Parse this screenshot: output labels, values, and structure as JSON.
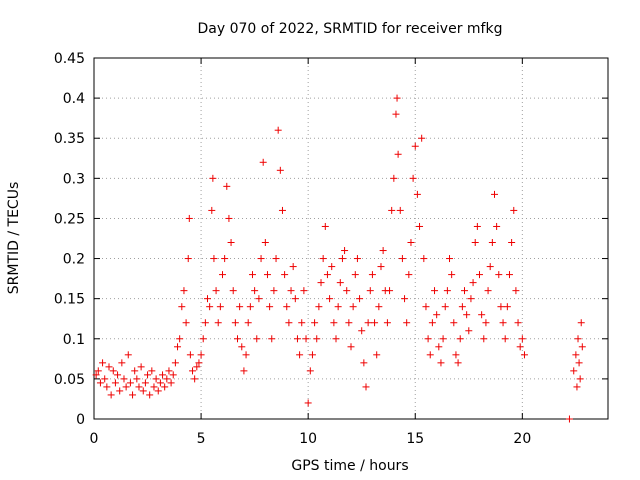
{
  "chart_data": {
    "type": "scatter",
    "title": "Day 070 of 2022, SRMTID for receiver mfkg",
    "xlabel": "GPS time / hours",
    "ylabel": "SRMTID / TECUs",
    "xlim": [
      0,
      24
    ],
    "ylim": [
      0,
      0.45
    ],
    "x_ticks": [
      0,
      5,
      10,
      15,
      20
    ],
    "x_tick_labels": [
      "0",
      "5",
      "10",
      "15",
      "20"
    ],
    "y_ticks": [
      0,
      0.05,
      0.1,
      0.15,
      0.2,
      0.25,
      0.3,
      0.35,
      0.4,
      0.45
    ],
    "y_tick_labels": [
      "0",
      "0.05",
      "0.1",
      "0.15",
      "0.2",
      "0.25",
      "0.3",
      "0.35",
      "0.4",
      "0.45"
    ],
    "grid": true,
    "marker": "plus",
    "color": "#ee0000",
    "series": [
      {
        "name": "SRMTID",
        "points": [
          [
            0.1,
            0.055
          ],
          [
            0.2,
            0.06
          ],
          [
            0.3,
            0.045
          ],
          [
            0.4,
            0.07
          ],
          [
            0.5,
            0.05
          ],
          [
            0.6,
            0.04
          ],
          [
            0.7,
            0.065
          ],
          [
            0.8,
            0.03
          ],
          [
            0.9,
            0.06
          ],
          [
            1.0,
            0.045
          ],
          [
            1.1,
            0.055
          ],
          [
            1.2,
            0.035
          ],
          [
            1.3,
            0.07
          ],
          [
            1.4,
            0.05
          ],
          [
            1.5,
            0.04
          ],
          [
            1.6,
            0.08
          ],
          [
            1.7,
            0.045
          ],
          [
            1.8,
            0.03
          ],
          [
            1.9,
            0.06
          ],
          [
            2.0,
            0.05
          ],
          [
            2.1,
            0.04
          ],
          [
            2.2,
            0.065
          ],
          [
            2.3,
            0.035
          ],
          [
            2.4,
            0.045
          ],
          [
            2.5,
            0.055
          ],
          [
            2.6,
            0.03
          ],
          [
            2.7,
            0.06
          ],
          [
            2.8,
            0.04
          ],
          [
            2.9,
            0.05
          ],
          [
            3.0,
            0.035
          ],
          [
            3.1,
            0.045
          ],
          [
            3.2,
            0.055
          ],
          [
            3.3,
            0.04
          ],
          [
            3.4,
            0.05
          ],
          [
            3.5,
            0.06
          ],
          [
            3.6,
            0.045
          ],
          [
            3.7,
            0.055
          ],
          [
            3.8,
            0.07
          ],
          [
            3.9,
            0.09
          ],
          [
            4.0,
            0.1
          ],
          [
            4.1,
            0.14
          ],
          [
            4.2,
            0.16
          ],
          [
            4.3,
            0.12
          ],
          [
            4.4,
            0.2
          ],
          [
            4.45,
            0.25
          ],
          [
            4.5,
            0.08
          ],
          [
            4.6,
            0.06
          ],
          [
            4.7,
            0.05
          ],
          [
            4.8,
            0.065
          ],
          [
            4.9,
            0.07
          ],
          [
            5.0,
            0.08
          ],
          [
            5.1,
            0.1
          ],
          [
            5.2,
            0.12
          ],
          [
            5.3,
            0.15
          ],
          [
            5.4,
            0.14
          ],
          [
            5.5,
            0.26
          ],
          [
            5.55,
            0.3
          ],
          [
            5.6,
            0.2
          ],
          [
            5.7,
            0.16
          ],
          [
            5.8,
            0.12
          ],
          [
            5.9,
            0.14
          ],
          [
            6.0,
            0.18
          ],
          [
            6.1,
            0.2
          ],
          [
            6.2,
            0.29
          ],
          [
            6.3,
            0.25
          ],
          [
            6.4,
            0.22
          ],
          [
            6.5,
            0.16
          ],
          [
            6.6,
            0.12
          ],
          [
            6.7,
            0.1
          ],
          [
            6.8,
            0.14
          ],
          [
            6.9,
            0.09
          ],
          [
            7.0,
            0.06
          ],
          [
            7.1,
            0.08
          ],
          [
            7.2,
            0.12
          ],
          [
            7.3,
            0.14
          ],
          [
            7.4,
            0.18
          ],
          [
            7.5,
            0.16
          ],
          [
            7.6,
            0.1
          ],
          [
            7.7,
            0.15
          ],
          [
            7.8,
            0.2
          ],
          [
            7.9,
            0.32
          ],
          [
            8.0,
            0.22
          ],
          [
            8.1,
            0.18
          ],
          [
            8.2,
            0.14
          ],
          [
            8.3,
            0.1
          ],
          [
            8.4,
            0.16
          ],
          [
            8.5,
            0.2
          ],
          [
            8.6,
            0.36
          ],
          [
            8.7,
            0.31
          ],
          [
            8.8,
            0.26
          ],
          [
            8.9,
            0.18
          ],
          [
            9.0,
            0.14
          ],
          [
            9.1,
            0.12
          ],
          [
            9.2,
            0.16
          ],
          [
            9.3,
            0.19
          ],
          [
            9.4,
            0.15
          ],
          [
            9.5,
            0.1
          ],
          [
            9.6,
            0.08
          ],
          [
            9.7,
            0.12
          ],
          [
            9.8,
            0.16
          ],
          [
            9.9,
            0.1
          ],
          [
            10.0,
            0.02
          ],
          [
            10.1,
            0.06
          ],
          [
            10.2,
            0.08
          ],
          [
            10.3,
            0.12
          ],
          [
            10.4,
            0.1
          ],
          [
            10.5,
            0.14
          ],
          [
            10.6,
            0.17
          ],
          [
            10.7,
            0.2
          ],
          [
            10.8,
            0.24
          ],
          [
            10.9,
            0.18
          ],
          [
            11.0,
            0.15
          ],
          [
            11.1,
            0.19
          ],
          [
            11.2,
            0.12
          ],
          [
            11.3,
            0.1
          ],
          [
            11.4,
            0.14
          ],
          [
            11.5,
            0.17
          ],
          [
            11.6,
            0.2
          ],
          [
            11.7,
            0.21
          ],
          [
            11.8,
            0.16
          ],
          [
            11.9,
            0.12
          ],
          [
            12.0,
            0.09
          ],
          [
            12.1,
            0.14
          ],
          [
            12.2,
            0.18
          ],
          [
            12.3,
            0.2
          ],
          [
            12.4,
            0.15
          ],
          [
            12.5,
            0.11
          ],
          [
            12.6,
            0.07
          ],
          [
            12.7,
            0.04
          ],
          [
            12.8,
            0.12
          ],
          [
            12.9,
            0.16
          ],
          [
            13.0,
            0.18
          ],
          [
            13.1,
            0.12
          ],
          [
            13.2,
            0.08
          ],
          [
            13.3,
            0.14
          ],
          [
            13.4,
            0.19
          ],
          [
            13.5,
            0.21
          ],
          [
            13.6,
            0.16
          ],
          [
            13.7,
            0.12
          ],
          [
            13.8,
            0.16
          ],
          [
            13.9,
            0.26
          ],
          [
            14.0,
            0.3
          ],
          [
            14.1,
            0.38
          ],
          [
            14.15,
            0.4
          ],
          [
            14.2,
            0.33
          ],
          [
            14.3,
            0.26
          ],
          [
            14.4,
            0.2
          ],
          [
            14.5,
            0.15
          ],
          [
            14.6,
            0.12
          ],
          [
            14.7,
            0.18
          ],
          [
            14.8,
            0.22
          ],
          [
            14.9,
            0.3
          ],
          [
            15.0,
            0.34
          ],
          [
            15.1,
            0.28
          ],
          [
            15.2,
            0.24
          ],
          [
            15.3,
            0.35
          ],
          [
            15.4,
            0.2
          ],
          [
            15.5,
            0.14
          ],
          [
            15.6,
            0.1
          ],
          [
            15.7,
            0.08
          ],
          [
            15.8,
            0.12
          ],
          [
            15.9,
            0.16
          ],
          [
            16.0,
            0.13
          ],
          [
            16.1,
            0.09
          ],
          [
            16.2,
            0.07
          ],
          [
            16.3,
            0.1
          ],
          [
            16.4,
            0.14
          ],
          [
            16.5,
            0.16
          ],
          [
            16.6,
            0.2
          ],
          [
            16.7,
            0.18
          ],
          [
            16.8,
            0.12
          ],
          [
            16.9,
            0.08
          ],
          [
            17.0,
            0.07
          ],
          [
            17.1,
            0.1
          ],
          [
            17.2,
            0.14
          ],
          [
            17.3,
            0.16
          ],
          [
            17.4,
            0.13
          ],
          [
            17.5,
            0.11
          ],
          [
            17.6,
            0.15
          ],
          [
            17.7,
            0.17
          ],
          [
            17.8,
            0.22
          ],
          [
            17.9,
            0.24
          ],
          [
            18.0,
            0.18
          ],
          [
            18.1,
            0.13
          ],
          [
            18.2,
            0.1
          ],
          [
            18.3,
            0.12
          ],
          [
            18.4,
            0.16
          ],
          [
            18.5,
            0.19
          ],
          [
            18.6,
            0.22
          ],
          [
            18.7,
            0.28
          ],
          [
            18.8,
            0.24
          ],
          [
            18.9,
            0.18
          ],
          [
            19.0,
            0.14
          ],
          [
            19.1,
            0.12
          ],
          [
            19.2,
            0.1
          ],
          [
            19.3,
            0.14
          ],
          [
            19.4,
            0.18
          ],
          [
            19.5,
            0.22
          ],
          [
            19.6,
            0.26
          ],
          [
            19.7,
            0.16
          ],
          [
            19.8,
            0.12
          ],
          [
            19.9,
            0.09
          ],
          [
            20.0,
            0.1
          ],
          [
            20.1,
            0.08
          ],
          [
            22.2,
            0.0
          ],
          [
            22.4,
            0.06
          ],
          [
            22.5,
            0.08
          ],
          [
            22.55,
            0.04
          ],
          [
            22.6,
            0.1
          ],
          [
            22.65,
            0.07
          ],
          [
            22.7,
            0.05
          ],
          [
            22.75,
            0.12
          ],
          [
            22.8,
            0.09
          ]
        ]
      }
    ]
  }
}
